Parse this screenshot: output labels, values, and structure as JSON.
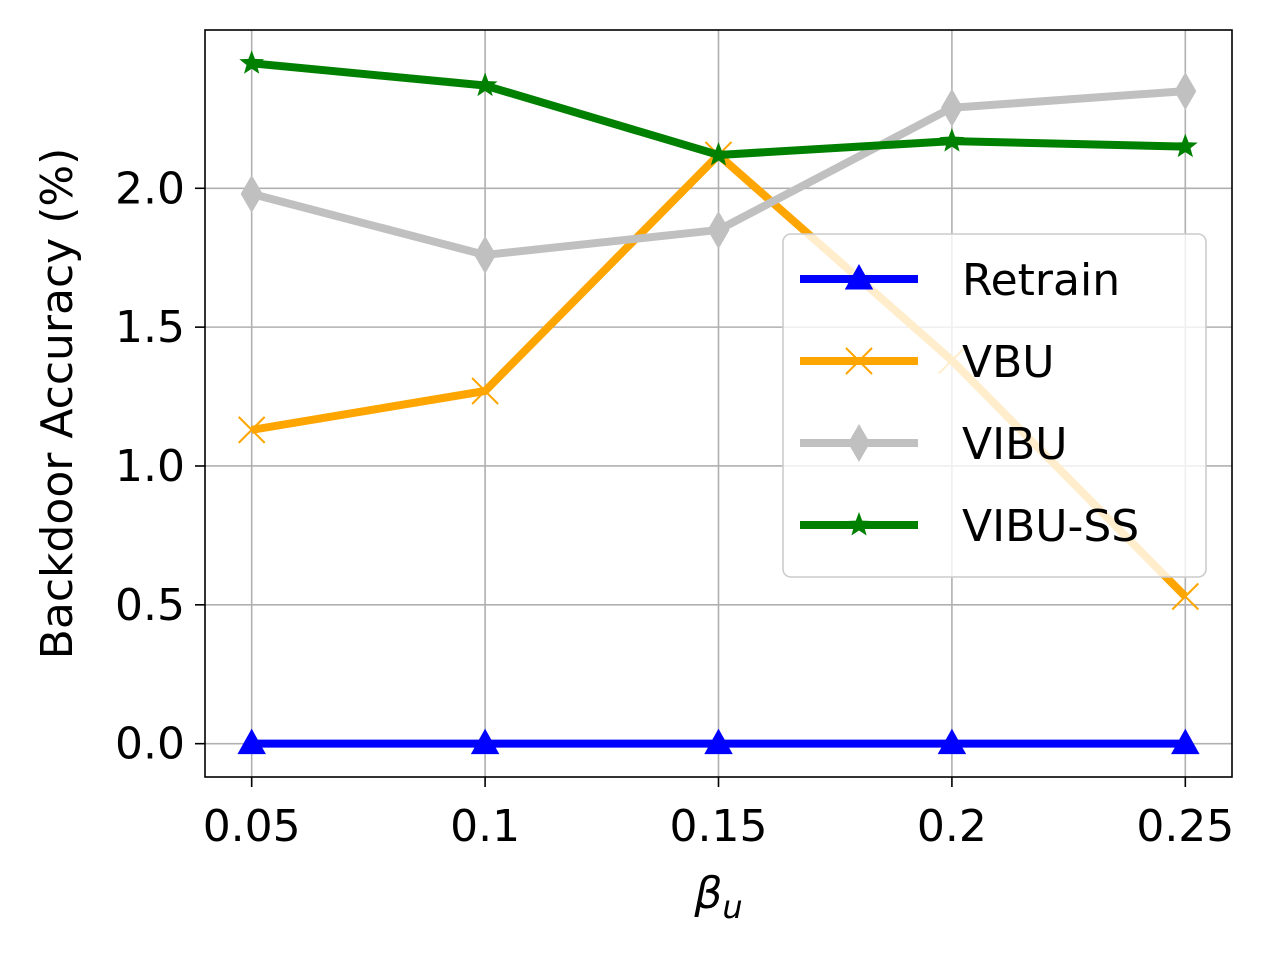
{
  "chart_data": {
    "type": "line",
    "x": [
      0.05,
      0.1,
      0.15,
      0.2,
      0.25
    ],
    "x_tick_labels": [
      "0.05",
      "0.1",
      "0.15",
      "0.2",
      "0.25"
    ],
    "y_ticks": [
      0.0,
      0.5,
      1.0,
      1.5,
      2.0
    ],
    "y_tick_labels": [
      "0.0",
      "0.5",
      "1.0",
      "1.5",
      "2.0"
    ],
    "xlim": [
      0.04,
      0.26
    ],
    "ylim": [
      -0.12,
      2.57
    ],
    "xlabel_base": "β",
    "xlabel_sub": "u",
    "ylabel": "Backdoor Accuracy (%)",
    "grid": true,
    "legend_position": "center-right",
    "series": [
      {
        "name": "Retrain",
        "color": "#0000ff",
        "marker": "triangle",
        "values": [
          0.0,
          0.0,
          0.0,
          0.0,
          0.0
        ]
      },
      {
        "name": "VBU",
        "color": "#ffa500",
        "marker": "x",
        "values": [
          1.13,
          1.27,
          2.12,
          1.38,
          0.53
        ]
      },
      {
        "name": "VIBU",
        "color": "#c0c0c0",
        "marker": "diamond",
        "values": [
          1.98,
          1.76,
          1.85,
          2.29,
          2.35
        ]
      },
      {
        "name": "VIBU-SS",
        "color": "#008000",
        "marker": "star",
        "values": [
          2.45,
          2.37,
          2.12,
          2.17,
          2.15
        ]
      }
    ]
  }
}
